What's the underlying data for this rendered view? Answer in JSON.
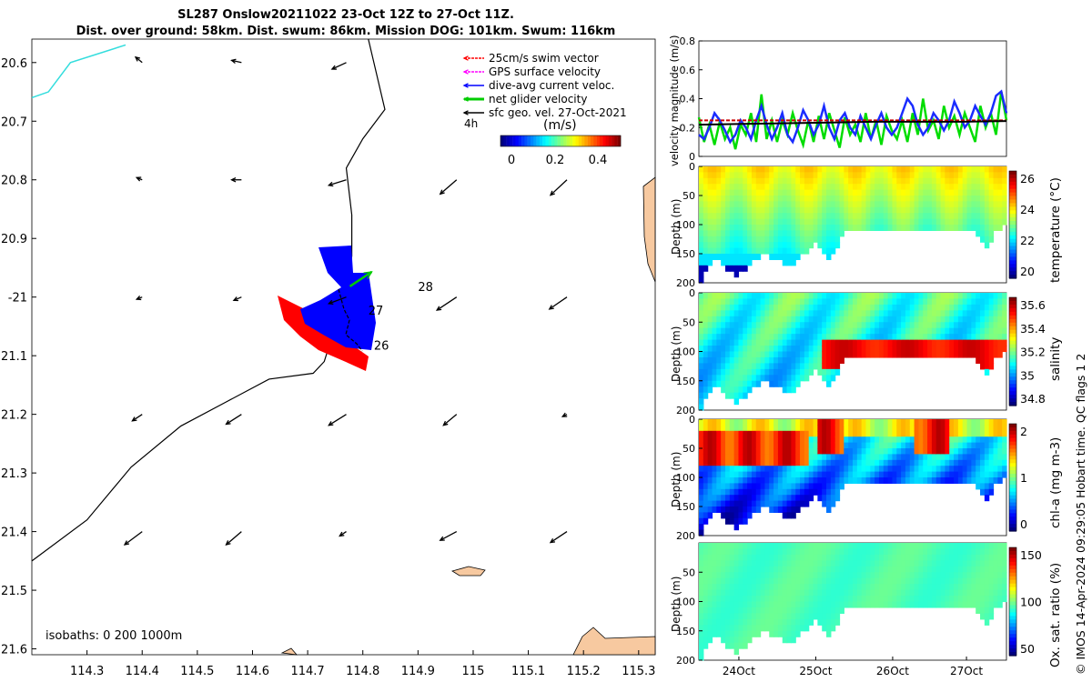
{
  "title": {
    "line1": "SL287 Onslow20211022 23-Oct 12Z to 27-Oct 11Z.",
    "line2": "Dist. over ground: 58km. Dist. swum: 86km. Mission DOG: 101km. Swum: 116km"
  },
  "colors": {
    "land": "#f7c9a0",
    "swim": "#ff0000",
    "gps": "#ff00ff",
    "dive": "#0000ff",
    "net": "#00cc00",
    "sfc": "#000000",
    "cyan_track": "#33dddd"
  },
  "chart_data": [
    {
      "type": "scatter",
      "name": "map",
      "xlim": [
        114.2,
        115.33
      ],
      "ylim": [
        -21.61,
        -20.56
      ],
      "x_ticks": [
        114.3,
        114.4,
        114.5,
        114.6,
        114.7,
        114.8,
        114.9,
        115,
        115.1,
        115.2,
        115.3
      ],
      "x_tick_labels": [
        "114.3",
        "114.4",
        "114.5",
        "114.6",
        "114.7",
        "114.8",
        "114.9",
        "115",
        "115.1",
        "115.2",
        "115.3"
      ],
      "y_ticks": [
        -20.6,
        -20.7,
        -20.8,
        -20.9,
        -21.0,
        -21.1,
        -21.2,
        -21.3,
        -21.4,
        -21.5,
        -21.6
      ],
      "y_tick_labels": [
        "20.6",
        "20.7",
        "20.8",
        "20.9",
        "-21",
        "21.1",
        "21.2",
        "21.3",
        "21.4",
        "21.5",
        "21.6"
      ],
      "legend": [
        {
          "label": "25cm/s swim vector",
          "color": "#ff0000"
        },
        {
          "label": "GPS surface velocity",
          "color": "#ff00ff"
        },
        {
          "label": "dive-avg current veloc.",
          "color": "#0000ff"
        },
        {
          "label": "net glider velocity",
          "color": "#00cc00"
        },
        {
          "label": "sfc geo. vel. 27-Oct-2021",
          "color": "#000000"
        }
      ],
      "legend_extra": "4h",
      "colorbar": {
        "label": "(m/s)",
        "ticks": [
          "0",
          "0.2",
          "0.4"
        ],
        "range": [
          0,
          0.5
        ]
      },
      "isobath_note": "isobaths: 0   200  1000m",
      "day_labels": [
        {
          "label": "26",
          "x": 114.82,
          "y": -21.09
        },
        {
          "label": "27",
          "x": 114.81,
          "y": -21.03
        },
        {
          "label": "28",
          "x": 114.9,
          "y": -20.99
        }
      ],
      "coast": [
        [
          114.2,
          -21.45
        ],
        [
          114.3,
          -21.38
        ],
        [
          114.38,
          -21.29
        ],
        [
          114.47,
          -21.22
        ],
        [
          114.55,
          -21.18
        ],
        [
          114.63,
          -21.14
        ],
        [
          114.71,
          -21.13
        ],
        [
          114.73,
          -21.11
        ],
        [
          114.75,
          -21.05
        ],
        [
          114.77,
          -20.99
        ],
        [
          114.78,
          -20.93
        ],
        [
          114.78,
          -20.86
        ],
        [
          114.77,
          -20.78
        ],
        [
          114.8,
          -20.73
        ],
        [
          114.84,
          -20.68
        ],
        [
          114.82,
          -20.6
        ],
        [
          114.81,
          -20.56
        ]
      ],
      "isobath_cyan": [
        [
          114.2,
          -20.66
        ],
        [
          114.23,
          -20.65
        ],
        [
          114.27,
          -20.6
        ],
        [
          114.37,
          -20.57
        ]
      ],
      "geo_vectors": [
        {
          "x": 114.4,
          "y": -20.6,
          "u": -0.06,
          "v": 0.05
        },
        {
          "x": 114.58,
          "y": -20.6,
          "u": -0.09,
          "v": 0.02
        },
        {
          "x": 114.77,
          "y": -20.6,
          "u": -0.13,
          "v": -0.06
        },
        {
          "x": 114.4,
          "y": -20.8,
          "u": -0.05,
          "v": 0.02
        },
        {
          "x": 114.58,
          "y": -20.8,
          "u": -0.09,
          "v": 0.0
        },
        {
          "x": 114.77,
          "y": -20.8,
          "u": -0.16,
          "v": -0.05
        },
        {
          "x": 114.97,
          "y": -20.8,
          "u": -0.15,
          "v": -0.13
        },
        {
          "x": 115.17,
          "y": -20.8,
          "u": -0.15,
          "v": -0.14
        },
        {
          "x": 114.4,
          "y": -21.0,
          "u": -0.05,
          "v": -0.02
        },
        {
          "x": 114.58,
          "y": -21.0,
          "u": -0.07,
          "v": -0.03
        },
        {
          "x": 114.77,
          "y": -21.0,
          "u": -0.16,
          "v": -0.06
        },
        {
          "x": 114.97,
          "y": -21.0,
          "u": -0.18,
          "v": -0.12
        },
        {
          "x": 115.17,
          "y": -21.0,
          "u": -0.16,
          "v": -0.11
        },
        {
          "x": 114.4,
          "y": -21.2,
          "u": -0.09,
          "v": -0.06
        },
        {
          "x": 114.58,
          "y": -21.2,
          "u": -0.14,
          "v": -0.09
        },
        {
          "x": 114.77,
          "y": -21.2,
          "u": -0.16,
          "v": -0.1
        },
        {
          "x": 114.97,
          "y": -21.2,
          "u": -0.12,
          "v": -0.1
        },
        {
          "x": 115.17,
          "y": -21.2,
          "u": -0.04,
          "v": -0.02
        },
        {
          "x": 114.4,
          "y": -21.4,
          "u": -0.16,
          "v": -0.12
        },
        {
          "x": 114.58,
          "y": -21.4,
          "u": -0.14,
          "v": -0.12
        },
        {
          "x": 114.77,
          "y": -21.4,
          "u": -0.06,
          "v": -0.04
        },
        {
          "x": 114.97,
          "y": -21.4,
          "u": -0.15,
          "v": -0.08
        },
        {
          "x": 115.17,
          "y": -21.4,
          "u": -0.15,
          "v": -0.1
        }
      ],
      "net_vector": {
        "x": 114.76,
        "y": -20.96,
        "u": 0.06,
        "v": 0.04
      }
    },
    {
      "type": "line",
      "name": "velocity",
      "ylabel": "velocity magnitude (m/s)",
      "ylim": [
        0,
        0.8
      ],
      "y_ticks": [
        "0",
        "0.2",
        "0.4",
        "0.6",
        "0.8"
      ],
      "series": [
        {
          "color": "#00dd00",
          "values": [
            0.27,
            0.1,
            0.22,
            0.08,
            0.24,
            0.12,
            0.2,
            0.05,
            0.22,
            0.15,
            0.3,
            0.1,
            0.43,
            0.12,
            0.25,
            0.1,
            0.25,
            0.15,
            0.3,
            0.18,
            0.08,
            0.25,
            0.1,
            0.28,
            0.12,
            0.3,
            0.18,
            0.06,
            0.27,
            0.15,
            0.22,
            0.1,
            0.3,
            0.12,
            0.25,
            0.08,
            0.28,
            0.18,
            0.12,
            0.25,
            0.1,
            0.3,
            0.15,
            0.4,
            0.18,
            0.25,
            0.12,
            0.35,
            0.2,
            0.28,
            0.15,
            0.3,
            0.2,
            0.1,
            0.35,
            0.2,
            0.3,
            0.15,
            0.45,
            0.25
          ]
        },
        {
          "color": "#1a2cff",
          "values": [
            0.15,
            0.12,
            0.2,
            0.3,
            0.25,
            0.18,
            0.1,
            0.15,
            0.25,
            0.2,
            0.12,
            0.25,
            0.35,
            0.22,
            0.12,
            0.2,
            0.3,
            0.15,
            0.1,
            0.2,
            0.32,
            0.25,
            0.15,
            0.22,
            0.35,
            0.2,
            0.12,
            0.25,
            0.3,
            0.2,
            0.15,
            0.28,
            0.2,
            0.12,
            0.22,
            0.3,
            0.2,
            0.15,
            0.2,
            0.3,
            0.4,
            0.35,
            0.22,
            0.15,
            0.2,
            0.3,
            0.25,
            0.18,
            0.25,
            0.38,
            0.3,
            0.2,
            0.25,
            0.35,
            0.28,
            0.22,
            0.3,
            0.42,
            0.45,
            0.3
          ]
        },
        {
          "color": "#cc0000",
          "values": [
            0.25,
            0.25,
            0.25,
            0.25,
            0.25,
            0.25,
            0.25,
            0.25
          ]
        },
        {
          "color": "#000000",
          "values": [
            0.22,
            0.225,
            0.23,
            0.235,
            0.24,
            0.24,
            0.24,
            0.245
          ]
        }
      ]
    },
    {
      "type": "heatmap",
      "name": "temperature",
      "ylabel": "Depth (m)",
      "cbar_label": "temperature (°C)",
      "cbar_ticks": [
        "20",
        "22",
        "24",
        "26"
      ],
      "ylim": [
        0,
        200
      ],
      "y_ticks": [
        "0",
        "50",
        "100",
        "150",
        "200"
      ]
    },
    {
      "type": "heatmap",
      "name": "salinity",
      "ylabel": "Depth (m)",
      "cbar_label": "salinity",
      "cbar_ticks": [
        "34.8",
        "35",
        "35.2",
        "35.4",
        "35.6"
      ],
      "ylim": [
        0,
        200
      ],
      "y_ticks": [
        "0",
        "50",
        "100",
        "150",
        "200"
      ]
    },
    {
      "type": "heatmap",
      "name": "chla",
      "ylabel": "Depth (m)",
      "cbar_label": "chl-a (mg m-3)",
      "cbar_ticks": [
        "0",
        "1",
        "2"
      ],
      "ylim": [
        0,
        200
      ],
      "y_ticks": [
        "0",
        "50",
        "100",
        "150",
        "200"
      ]
    },
    {
      "type": "heatmap",
      "name": "oxygen",
      "ylabel": "Depth (m)",
      "cbar_label": "Ox. sat. ratio (%)",
      "cbar_ticks": [
        "50",
        "100",
        "150"
      ],
      "ylim": [
        0,
        200
      ],
      "y_ticks": [
        "50",
        "100",
        "150",
        "200"
      ],
      "x_tick_labels": [
        "24Oct",
        "25Oct",
        "26Oct",
        "27Oct"
      ]
    }
  ],
  "footer": "© IMOS 14-Apr-2024 09:29:05 Hobart time. QC flags 1  2"
}
